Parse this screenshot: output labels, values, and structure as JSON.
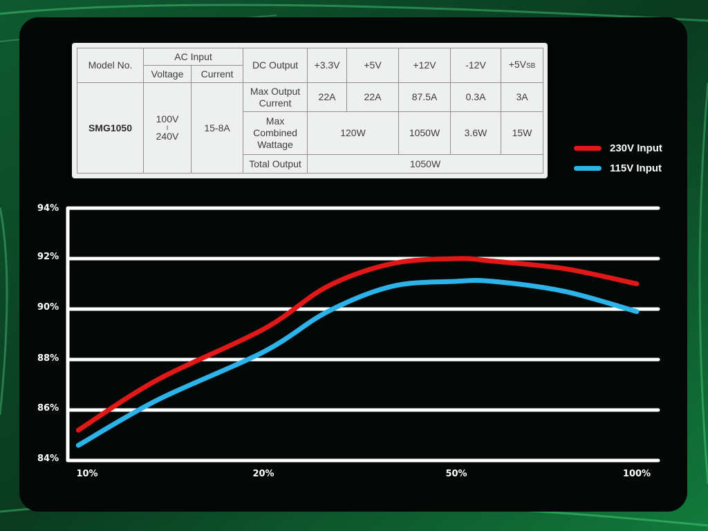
{
  "spec_table": {
    "model_no_label": "Model No.",
    "ac_input_label": "AC Input",
    "voltage_label": "Voltage",
    "current_label": "Current",
    "dc_output_label": "DC Output",
    "rails": [
      "+3.3V",
      "+5V",
      "+12V",
      "-12V",
      "+5V"
    ],
    "rail_5vsb_suffix": "SB",
    "model": "SMG1050",
    "voltage_low": "100V",
    "voltage_sep": "I",
    "voltage_high": "240V",
    "current": "15-8A",
    "max_output_current_label": "Max Output Current",
    "max_output_current": [
      "22A",
      "22A",
      "87.5A",
      "0.3A",
      "3A"
    ],
    "max_combined_wattage_label": "Max Combined Wattage",
    "combined_3v3_5v": "120W",
    "combined_12v": "1050W",
    "combined_m12v": "3.6W",
    "combined_5vsb": "15W",
    "total_output_label": "Total Output",
    "total_output": "1050W"
  },
  "chart_data": {
    "type": "line",
    "title": "",
    "xlabel": "",
    "ylabel": "",
    "x": [
      "10%",
      "20%",
      "50%",
      "100%"
    ],
    "y_ticks": [
      "94%",
      "92%",
      "90%",
      "88%",
      "86%",
      "84%"
    ],
    "ylim": [
      84,
      94
    ],
    "grid": true,
    "legend_position": "right",
    "series": [
      {
        "name": "230V Input",
        "color": "#e01818",
        "x": [
          9.5,
          14,
          20,
          30,
          40,
          50,
          60,
          80,
          100
        ],
        "y": [
          85.2,
          87.2,
          89.2,
          90.9,
          91.8,
          92.0,
          91.9,
          91.6,
          91.0
        ]
      },
      {
        "name": "115V Input",
        "color": "#2cb4ea",
        "x": [
          9.5,
          14,
          20,
          30,
          40,
          50,
          60,
          80,
          100
        ],
        "y": [
          84.6,
          86.4,
          88.3,
          89.9,
          90.9,
          91.1,
          91.1,
          90.7,
          89.9
        ]
      }
    ]
  }
}
